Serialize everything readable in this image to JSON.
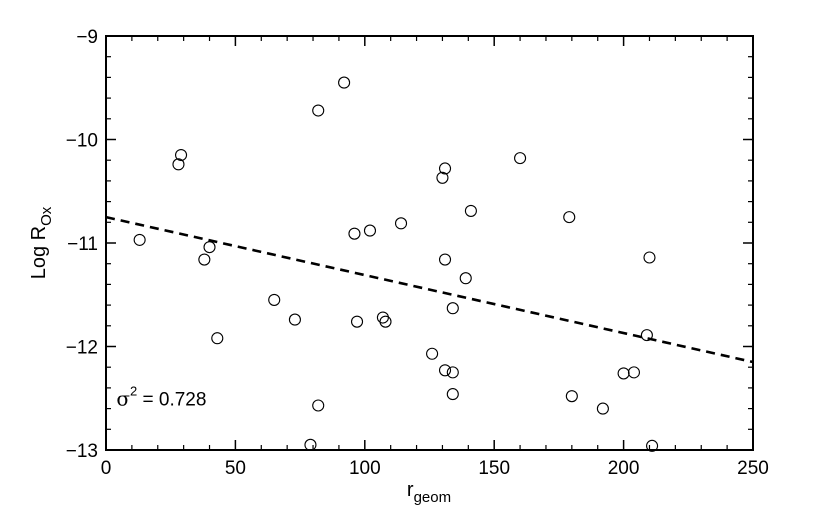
{
  "chart_data": {
    "type": "scatter",
    "title": "",
    "xlabel": {
      "main": "r",
      "sub": "geom"
    },
    "ylabel": {
      "main": "Log R",
      "sub": "Ox"
    },
    "xlim": [
      0,
      250
    ],
    "ylim": [
      -13,
      -9
    ],
    "x_ticks": [
      0,
      50,
      100,
      150,
      200,
      250
    ],
    "y_ticks": [
      -13,
      -12,
      -11,
      -10,
      -9
    ],
    "grid": false,
    "legend": "none",
    "marker": "open-circle",
    "colors": {
      "points": "#000000",
      "fit_line": "#000000",
      "background": "#ffffff"
    },
    "points": [
      {
        "x": 92,
        "y": -9.45
      },
      {
        "x": 82,
        "y": -9.72
      },
      {
        "x": 29,
        "y": -10.15
      },
      {
        "x": 28,
        "y": -10.24
      },
      {
        "x": 160,
        "y": -10.18
      },
      {
        "x": 131,
        "y": -10.28
      },
      {
        "x": 130,
        "y": -10.37
      },
      {
        "x": 141,
        "y": -10.69
      },
      {
        "x": 179,
        "y": -10.75
      },
      {
        "x": 114,
        "y": -10.81
      },
      {
        "x": 102,
        "y": -10.88
      },
      {
        "x": 96,
        "y": -10.91
      },
      {
        "x": 13,
        "y": -10.97
      },
      {
        "x": 40,
        "y": -11.04
      },
      {
        "x": 38,
        "y": -11.16
      },
      {
        "x": 131,
        "y": -11.16
      },
      {
        "x": 210,
        "y": -11.14
      },
      {
        "x": 139,
        "y": -11.34
      },
      {
        "x": 65,
        "y": -11.55
      },
      {
        "x": 134,
        "y": -11.63
      },
      {
        "x": 73,
        "y": -11.74
      },
      {
        "x": 97,
        "y": -11.76
      },
      {
        "x": 107,
        "y": -11.72
      },
      {
        "x": 108,
        "y": -11.76
      },
      {
        "x": 43,
        "y": -11.92
      },
      {
        "x": 209,
        "y": -11.89
      },
      {
        "x": 126,
        "y": -12.07
      },
      {
        "x": 131,
        "y": -12.23
      },
      {
        "x": 134,
        "y": -12.25
      },
      {
        "x": 200,
        "y": -12.26
      },
      {
        "x": 204,
        "y": -12.25
      },
      {
        "x": 134,
        "y": -12.46
      },
      {
        "x": 180,
        "y": -12.48
      },
      {
        "x": 82,
        "y": -12.57
      },
      {
        "x": 192,
        "y": -12.6
      },
      {
        "x": 79,
        "y": -12.95
      },
      {
        "x": 211,
        "y": -12.96
      }
    ],
    "fit_line": {
      "style": "dashed",
      "x": [
        0,
        250
      ],
      "y": [
        -10.75,
        -12.15
      ]
    },
    "annotations": [
      {
        "label": "σ",
        "superscript": "2",
        "text": " = 0.728",
        "x": 4,
        "y": -12.57
      }
    ]
  }
}
